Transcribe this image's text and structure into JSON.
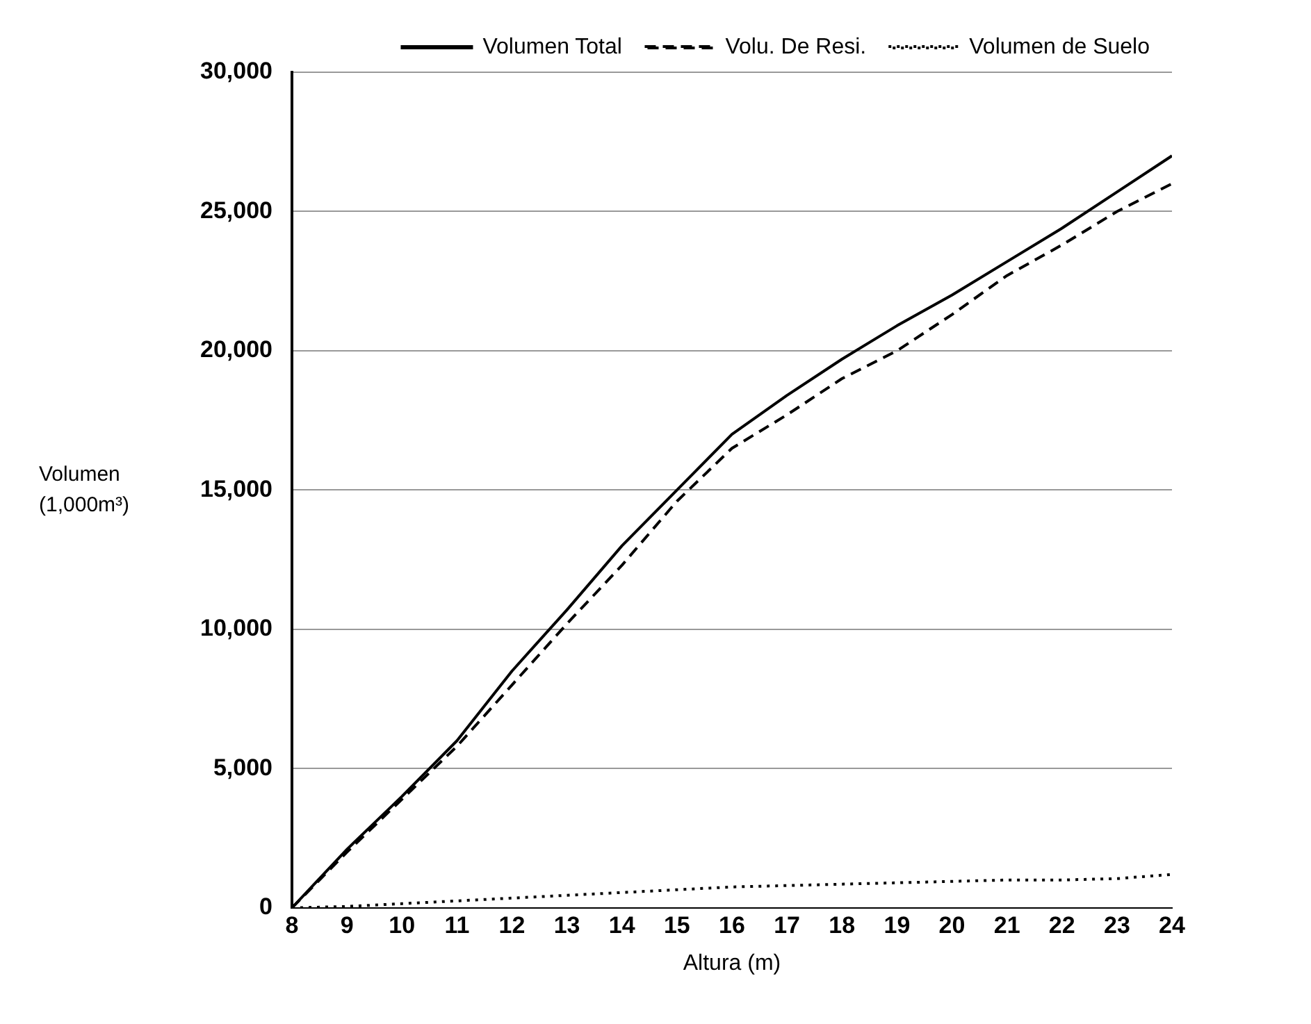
{
  "chart_data": {
    "type": "line",
    "xlabel": "Altura (m)",
    "ylabel": "Volumen (1,000m³)",
    "x": [
      8,
      9,
      10,
      11,
      12,
      13,
      14,
      15,
      16,
      17,
      18,
      19,
      20,
      21,
      22,
      23,
      24
    ],
    "series": [
      {
        "name": "Volumen Total",
        "color": "#000000",
        "line_style": "solid",
        "values": [
          0,
          2100,
          4000,
          6000,
          8500,
          10700,
          13000,
          15000,
          17000,
          18400,
          19700,
          20900,
          22000,
          23200,
          24400,
          25700,
          27000
        ]
      },
      {
        "name": "Volu. De Resi.",
        "color": "#000000",
        "line_style": "dashed",
        "values": [
          0,
          2000,
          3900,
          5800,
          8000,
          10200,
          12300,
          14600,
          16500,
          17700,
          19000,
          20000,
          21300,
          22700,
          23800,
          25000,
          26000
        ]
      },
      {
        "name": "Volumen de Suelo",
        "color": "#000000",
        "line_style": "dotted",
        "values": [
          0,
          50,
          150,
          250,
          350,
          450,
          550,
          650,
          750,
          800,
          850,
          900,
          950,
          1000,
          1000,
          1050,
          1200
        ]
      }
    ],
    "xlim": [
      8,
      24
    ],
    "xticks": [
      8,
      9,
      10,
      11,
      12,
      13,
      14,
      15,
      16,
      17,
      18,
      19,
      20,
      21,
      22,
      23,
      24
    ],
    "ylim": [
      0,
      30000
    ],
    "yticks": [
      0,
      {
        "value": 5000,
        "label": "5,000"
      },
      {
        "value": 10000,
        "label": "10,000"
      },
      {
        "value": 15000,
        "label": "15,000"
      },
      {
        "value": 20000,
        "label": "20,000"
      },
      {
        "value": 25000,
        "label": "25,000"
      },
      {
        "value": 30000,
        "label": "30,000"
      }
    ],
    "grid": "y",
    "legend": "top right",
    "marker": "none"
  }
}
